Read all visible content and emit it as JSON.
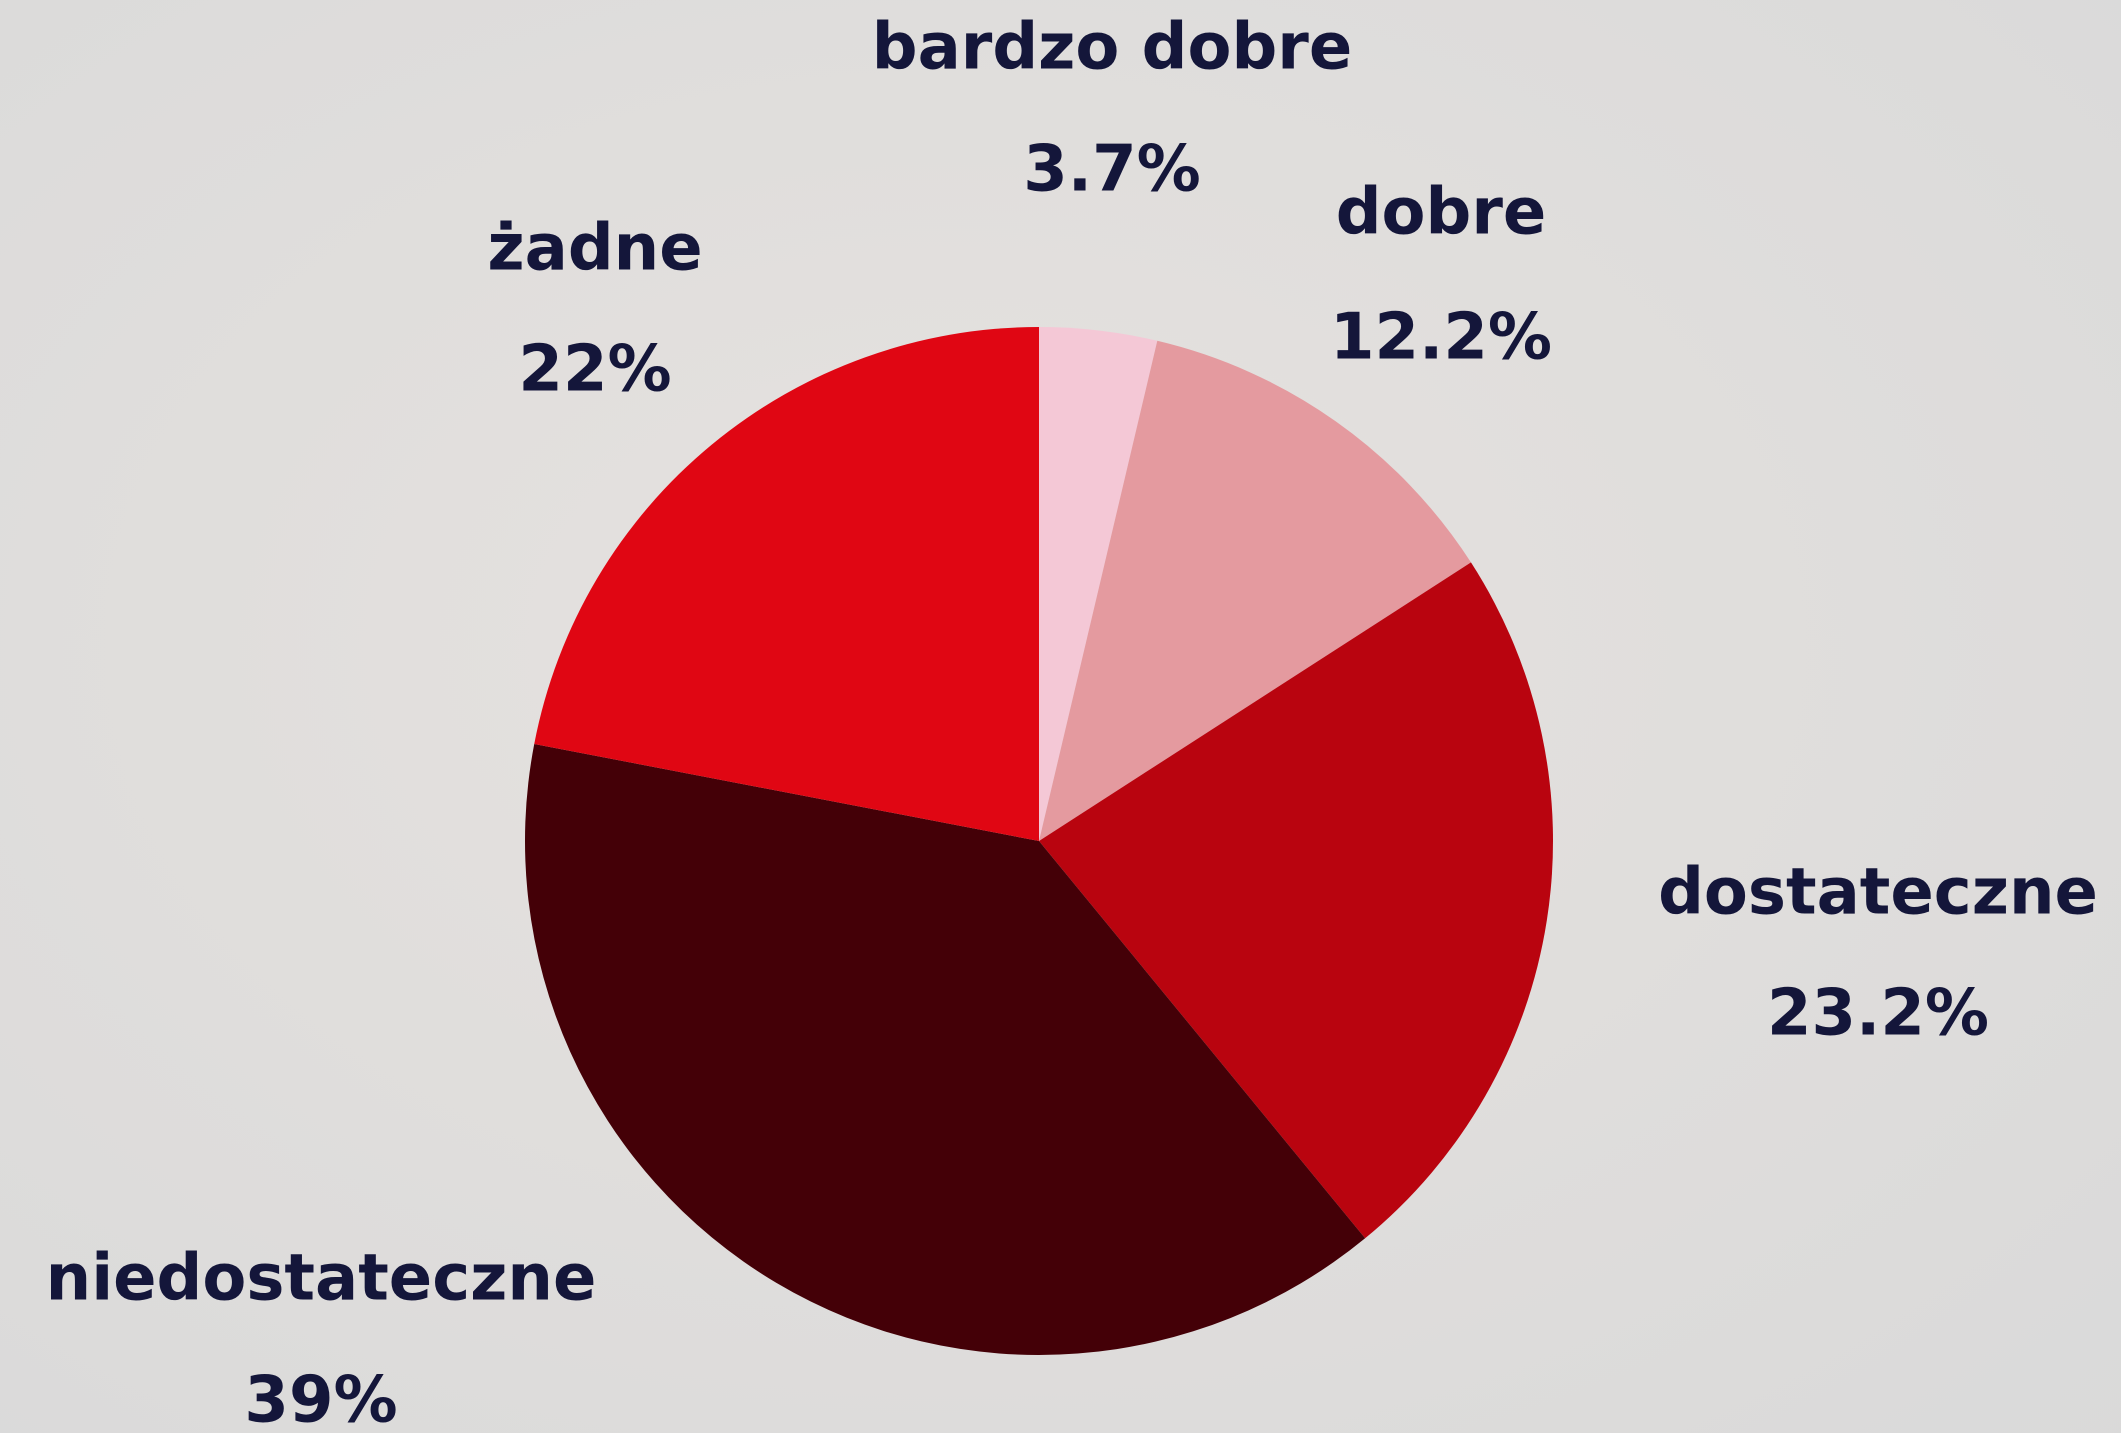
{
  "chart_data": {
    "type": "pie",
    "categories": [
      "bardzo dobre",
      "dobre",
      "dostateczne",
      "niedostateczne",
      "żadne"
    ],
    "values": [
      3.7,
      12.2,
      23.2,
      39,
      22
    ],
    "value_labels": [
      "3.7%",
      "12.2%",
      "23.2%",
      "39%",
      "22%"
    ],
    "colors": [
      "#f4c8d6",
      "#e49a9f",
      "#b9040f",
      "#440007",
      "#e00613"
    ]
  }
}
